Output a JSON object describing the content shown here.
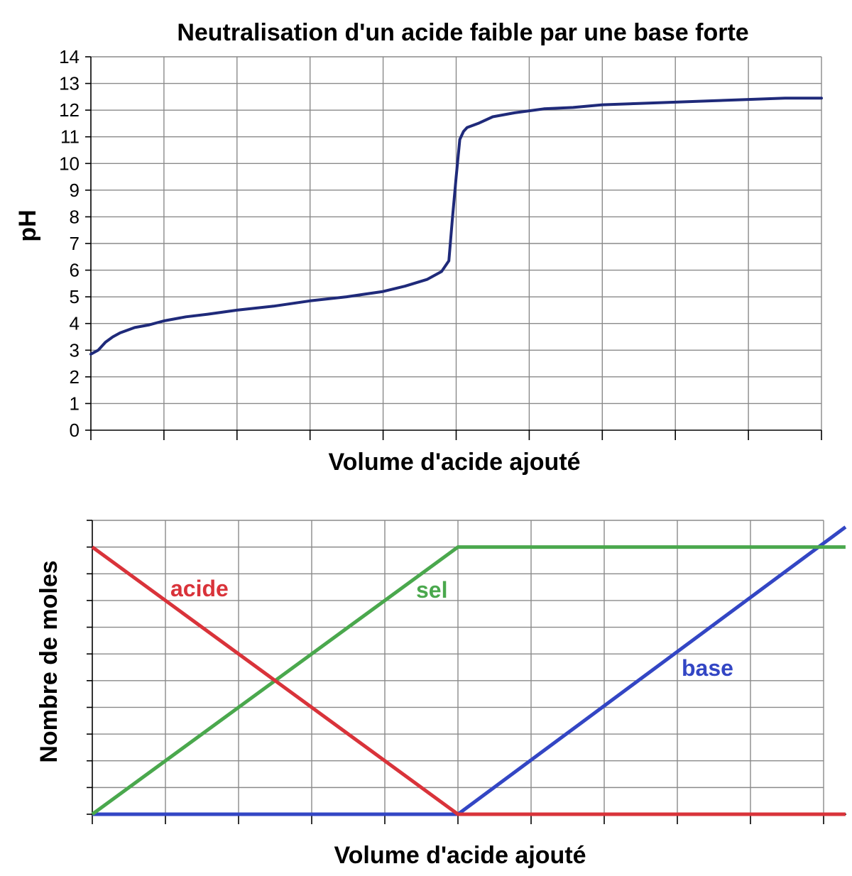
{
  "chart_data": [
    {
      "type": "line",
      "title": "Neutralisation d'un acide faible par une base forte",
      "xlabel": "Volume  d'acide ajouté",
      "ylabel": "pH",
      "ylim": [
        0,
        14
      ],
      "xlim": [
        0,
        10
      ],
      "yticks": [
        "0",
        "1",
        "2",
        "3",
        "4",
        "5",
        "6",
        "7",
        "8",
        "9",
        "10",
        "11",
        "12",
        "13",
        "14"
      ],
      "grid": true,
      "series": [
        {
          "name": "",
          "color": "#1f2a7a",
          "x": [
            0,
            0.1,
            0.2,
            0.3,
            0.4,
            0.6,
            0.8,
            1.0,
            1.3,
            1.6,
            2.0,
            2.5,
            3.0,
            3.5,
            4.0,
            4.3,
            4.6,
            4.8,
            4.9,
            4.95,
            5.0,
            5.05,
            5.1,
            5.15,
            5.3,
            5.5,
            5.8,
            6.2,
            6.6,
            7.0,
            7.5,
            8.0,
            8.5,
            9.0,
            9.5,
            10.0
          ],
          "y": [
            2.85,
            3.0,
            3.3,
            3.5,
            3.65,
            3.85,
            3.95,
            4.1,
            4.25,
            4.35,
            4.5,
            4.65,
            4.85,
            5.0,
            5.2,
            5.4,
            5.65,
            5.95,
            6.35,
            8.0,
            9.5,
            10.9,
            11.2,
            11.35,
            11.5,
            11.75,
            11.9,
            12.05,
            12.1,
            12.2,
            12.25,
            12.3,
            12.35,
            12.4,
            12.45,
            12.45
          ]
        }
      ]
    },
    {
      "type": "line",
      "title": "",
      "xlabel": "Volume  d'acide ajouté",
      "ylabel": "Nombre de moles",
      "ylim": [
        0,
        11
      ],
      "xlim": [
        0,
        10.3
      ],
      "grid": true,
      "series": [
        {
          "name": "acide",
          "color": "#d9333a",
          "x": [
            0,
            5,
            10.3
          ],
          "y": [
            10,
            0,
            0
          ]
        },
        {
          "name": "sel",
          "color": "#4aa84d",
          "x": [
            0,
            5,
            10.3
          ],
          "y": [
            0,
            10,
            10
          ]
        },
        {
          "name": "base",
          "color": "#3346c4",
          "x": [
            0,
            5,
            10.3
          ],
          "y": [
            0,
            0,
            10.75
          ]
        }
      ]
    }
  ]
}
